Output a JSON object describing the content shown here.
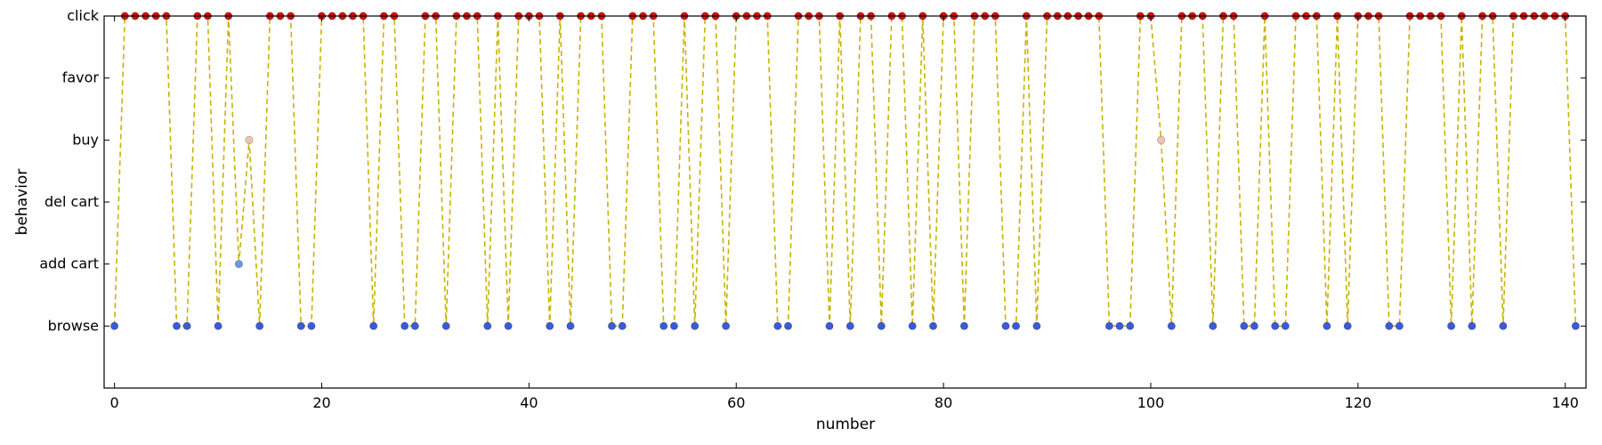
{
  "chart_data": {
    "type": "line",
    "title": "",
    "xlabel": "number",
    "ylabel": "behavior",
    "xlim": [
      -1,
      142
    ],
    "ylim": [
      -1,
      5
    ],
    "xticks": [
      0,
      20,
      40,
      60,
      80,
      100,
      120,
      140
    ],
    "yticks": [
      {
        "value": 0,
        "label": "browse"
      },
      {
        "value": 1,
        "label": "add cart"
      },
      {
        "value": 2,
        "label": "del cart"
      },
      {
        "value": 3,
        "label": "buy"
      },
      {
        "value": 4,
        "label": "favor"
      },
      {
        "value": 5,
        "label": "click"
      }
    ],
    "grid": false,
    "line_style": "dashed",
    "line_color": "#c8b400",
    "point_colors": {
      "browse": "#3b5bd6",
      "add cart": "#7196e0",
      "buy": "#efc3b4",
      "click": "#d01010"
    },
    "x": [
      0,
      1,
      2,
      3,
      4,
      5,
      6,
      7,
      8,
      9,
      10,
      11,
      12,
      13,
      14,
      15,
      16,
      17,
      18,
      19,
      20,
      21,
      22,
      23,
      24,
      25,
      26,
      27,
      28,
      29,
      30,
      31,
      32,
      33,
      34,
      35,
      36,
      37,
      38,
      39,
      40,
      41,
      42,
      43,
      44,
      45,
      46,
      47,
      48,
      49,
      50,
      51,
      52,
      53,
      54,
      55,
      56,
      57,
      58,
      59,
      60,
      61,
      62,
      63,
      64,
      65,
      66,
      67,
      68,
      69,
      70,
      71,
      72,
      73,
      74,
      75,
      76,
      77,
      78,
      79,
      80,
      81,
      82,
      83,
      84,
      85,
      86,
      87,
      88,
      89,
      90,
      91,
      92,
      93,
      94,
      95,
      96,
      97,
      98,
      99,
      100,
      101,
      102,
      103,
      104,
      105,
      106,
      107,
      108,
      109,
      110,
      111,
      112,
      113,
      114,
      115,
      116,
      117,
      118,
      119,
      120,
      121,
      122,
      123,
      124,
      125,
      126,
      127,
      128,
      129,
      130,
      131,
      132,
      133,
      134,
      135,
      136,
      137,
      138,
      139,
      140,
      141
    ],
    "y": [
      0,
      5,
      5,
      5,
      5,
      5,
      0,
      0,
      5,
      5,
      0,
      5,
      1,
      3,
      0,
      5,
      5,
      5,
      0,
      0,
      5,
      5,
      5,
      5,
      5,
      0,
      5,
      5,
      0,
      0,
      5,
      5,
      0,
      5,
      5,
      5,
      0,
      5,
      0,
      5,
      5,
      5,
      0,
      5,
      0,
      5,
      5,
      5,
      0,
      0,
      5,
      5,
      5,
      0,
      0,
      5,
      0,
      5,
      5,
      0,
      5,
      5,
      5,
      5,
      0,
      0,
      5,
      5,
      5,
      0,
      5,
      0,
      5,
      5,
      0,
      5,
      5,
      0,
      5,
      0,
      5,
      5,
      0,
      5,
      5,
      5,
      0,
      0,
      5,
      0,
      5,
      5,
      5,
      5,
      5,
      5,
      0,
      0,
      0,
      5,
      5,
      3,
      0,
      5,
      5,
      5,
      0,
      5,
      5,
      0,
      0,
      5,
      0,
      0,
      5,
      5,
      5,
      0,
      5,
      0,
      5,
      5,
      5,
      0,
      0,
      5,
      5,
      5,
      5,
      0,
      5,
      0,
      5,
      5,
      0,
      5,
      5,
      5,
      5,
      5,
      5,
      0
    ]
  }
}
